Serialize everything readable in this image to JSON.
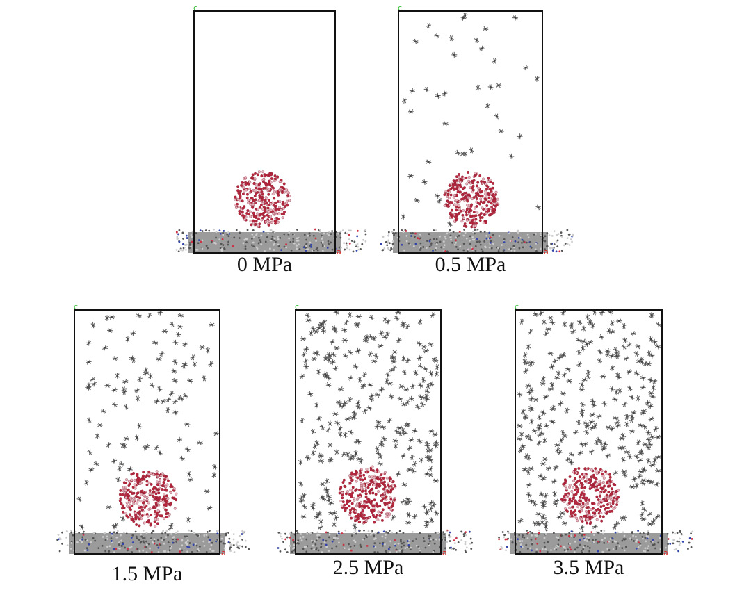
{
  "panels": [
    {
      "label": "0 MPa",
      "axis_c": "c",
      "axis_a": "a"
    },
    {
      "label": "0.5 MPa",
      "axis_c": "c",
      "axis_a": "a"
    },
    {
      "label": "1.5 MPa",
      "axis_c": "c",
      "axis_a": "a"
    },
    {
      "label": "2.5 MPa",
      "axis_c": "c",
      "axis_a": "a"
    },
    {
      "label": "3.5 MPa",
      "axis_c": "c",
      "axis_a": "a"
    }
  ]
}
